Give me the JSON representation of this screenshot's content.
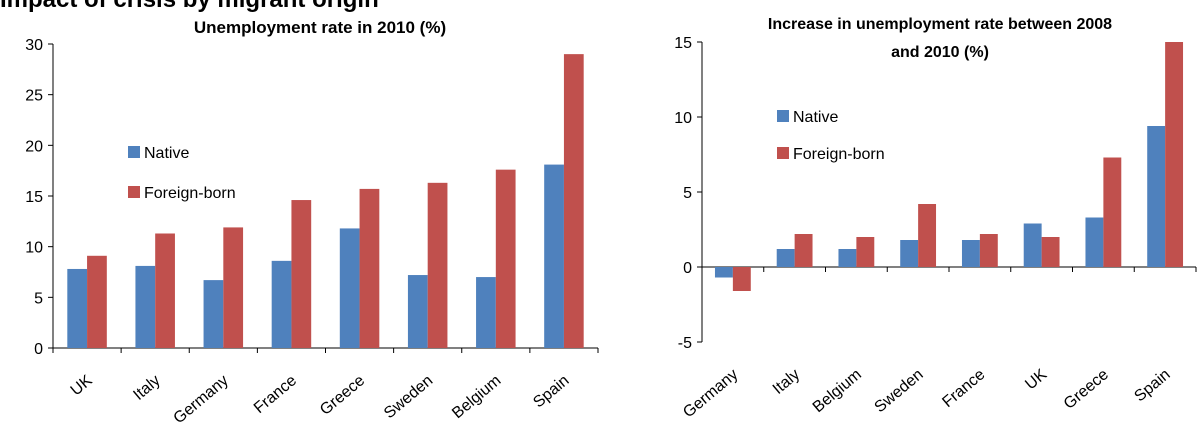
{
  "page_heading": "Impact of crisis by migrant origin",
  "colors": {
    "native": "#4F81BD",
    "foreign": "#C0504D"
  },
  "chart_data": [
    {
      "type": "bar",
      "title": "Unemployment rate in 2010  (%)",
      "xlabel": "",
      "ylabel": "",
      "categories": [
        "UK",
        "Italy",
        "Germany",
        "France",
        "Greece",
        "Sweden",
        "Belgium",
        "Spain"
      ],
      "series": [
        {
          "name": "Native",
          "color": "#4F81BD",
          "values": [
            7.8,
            8.1,
            6.7,
            8.6,
            11.8,
            7.2,
            7.0,
            18.1
          ]
        },
        {
          "name": "Foreign-born",
          "color": "#C0504D",
          "values": [
            9.1,
            11.3,
            11.9,
            14.6,
            15.7,
            16.3,
            17.6,
            29.0
          ]
        }
      ],
      "ylim": [
        0,
        30
      ],
      "yticks": [
        0,
        5,
        10,
        15,
        20,
        25,
        30
      ],
      "grid": false,
      "legend_position": "upper-left"
    },
    {
      "type": "bar",
      "title_lines": [
        "Increase in unemployment rate between 2008",
        "and 2010  (%)"
      ],
      "xlabel": "",
      "ylabel": "",
      "categories": [
        "Germany",
        "Italy",
        "Belgium",
        "Sweden",
        "France",
        "UK",
        "Greece",
        "Spain"
      ],
      "series": [
        {
          "name": "Native",
          "color": "#4F81BD",
          "values": [
            -0.7,
            1.2,
            1.2,
            1.8,
            1.8,
            2.9,
            3.3,
            9.4
          ]
        },
        {
          "name": "Foreign-born",
          "color": "#C0504D",
          "values": [
            -1.6,
            2.2,
            2.0,
            4.2,
            2.2,
            2.0,
            7.3,
            15.0
          ]
        }
      ],
      "ylim": [
        -5,
        15
      ],
      "yticks": [
        -5,
        0,
        5,
        10,
        15
      ],
      "grid": false,
      "legend_position": "upper-left"
    }
  ]
}
